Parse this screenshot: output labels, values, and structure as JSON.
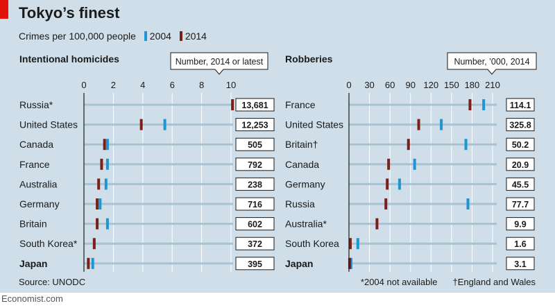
{
  "title": "Tokyo’s finest",
  "subtitle": "Crimes per 100,000 people",
  "legend": [
    {
      "label": "2004",
      "color": "#1f96d2"
    },
    {
      "label": "2014",
      "color": "#7a1f1a"
    }
  ],
  "source": "Source: UNODC",
  "footnote_asterisk": "*2004 not available",
  "footnote_dagger": "†England and Wales",
  "credit": "Economist.com",
  "colors": {
    "bar_2004": "#1f96d2",
    "bar_2014": "#7a1f1a",
    "background": "#cfdee8",
    "track": "#a8c2d2"
  },
  "chart_data": [
    {
      "type": "dot",
      "title": "Intentional homicides",
      "total_label": "Number, 2014 or latest",
      "xlim": [
        0,
        10
      ],
      "xticks": [
        "0",
        "2",
        "4",
        "6",
        "8",
        "10"
      ],
      "tick_values": [
        0,
        2,
        4,
        6,
        8,
        10
      ],
      "categories": [
        "Russia*",
        "United States",
        "Canada",
        "France",
        "Australia",
        "Germany",
        "Britain",
        "South Korea*",
        "Japan"
      ],
      "bold": [
        false,
        false,
        false,
        false,
        false,
        false,
        false,
        false,
        true
      ],
      "series": [
        {
          "name": "2004",
          "values": [
            null,
            5.5,
            1.6,
            1.6,
            1.5,
            1.1,
            1.6,
            null,
            0.6
          ]
        },
        {
          "name": "2014",
          "values": [
            10.1,
            3.9,
            1.4,
            1.2,
            1.0,
            0.9,
            0.9,
            0.7,
            0.3
          ]
        }
      ],
      "totals": [
        "13,681",
        "12,253",
        "505",
        "792",
        "238",
        "716",
        "602",
        "372",
        "395"
      ]
    },
    {
      "type": "dot",
      "title": "Robberies",
      "total_label": "Number, ’000, 2014",
      "xlim": [
        0,
        210
      ],
      "xticks": [
        "0",
        "30",
        "60",
        "90",
        "120",
        "150",
        "180",
        "210"
      ],
      "tick_values": [
        0,
        30,
        60,
        90,
        120,
        150,
        180,
        210
      ],
      "categories": [
        "France",
        "United States",
        "Britain†",
        "Canada",
        "Germany",
        "Russia",
        "Australia*",
        "South Korea",
        "Japan"
      ],
      "bold": [
        false,
        false,
        false,
        false,
        false,
        false,
        false,
        false,
        true
      ],
      "series": [
        {
          "name": "2004",
          "values": [
            197,
            135,
            171,
            96,
            74,
            174,
            null,
            13,
            3
          ]
        },
        {
          "name": "2014",
          "values": [
            177,
            102,
            87,
            58,
            56,
            54,
            41,
            2,
            1
          ]
        }
      ],
      "totals": [
        "114.1",
        "325.8",
        "50.2",
        "20.9",
        "45.5",
        "77.7",
        "9.9",
        "1.6",
        "3.1"
      ]
    }
  ]
}
